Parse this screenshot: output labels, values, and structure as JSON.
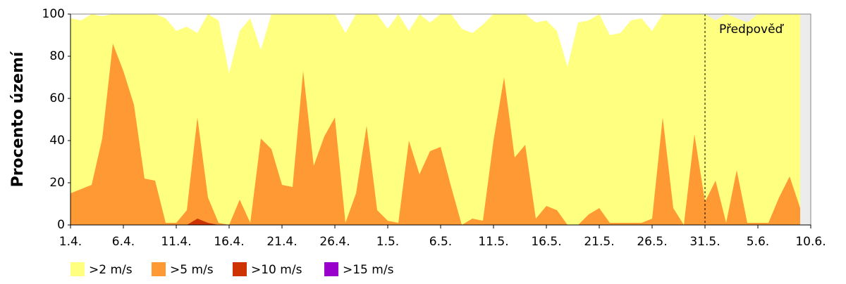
{
  "chart_data": {
    "type": "area",
    "y_label": "Procento území",
    "categories": [
      "1.4.",
      null,
      null,
      null,
      null,
      "6.4.",
      null,
      null,
      null,
      null,
      "11.4.",
      null,
      null,
      null,
      null,
      "16.4.",
      null,
      null,
      null,
      null,
      "21.4.",
      null,
      null,
      null,
      null,
      "26.4.",
      null,
      null,
      null,
      null,
      "1.5.",
      null,
      null,
      null,
      null,
      "6.5.",
      null,
      null,
      null,
      null,
      "11.5.",
      null,
      null,
      null,
      null,
      "16.5.",
      null,
      null,
      null,
      null,
      "21.5.",
      null,
      null,
      null,
      null,
      "26.5.",
      null,
      null,
      null,
      null,
      "31.5.",
      null,
      null,
      null,
      null,
      "5.6.",
      null,
      null,
      null,
      null,
      "10.6."
    ],
    "series": [
      {
        "name": ">2 m/s",
        "color": "#ffff80",
        "values": [
          98,
          97,
          100,
          99,
          100,
          100,
          100,
          100,
          100,
          98,
          92,
          94,
          91,
          100,
          97,
          72,
          92,
          98,
          83,
          100,
          100,
          100,
          100,
          100,
          100,
          100,
          91,
          100,
          100,
          100,
          93,
          100,
          92,
          100,
          96,
          100,
          100,
          93,
          91,
          95,
          100,
          100,
          100,
          100,
          96,
          97,
          92,
          75,
          96,
          97,
          100,
          90,
          91,
          97,
          98,
          92,
          100,
          100,
          100,
          100,
          100,
          97,
          100,
          98,
          96,
          100,
          100,
          100,
          100,
          100,
          null
        ]
      },
      {
        "name": ">5 m/s",
        "color": "#ff9933",
        "values": [
          15,
          17,
          19,
          41,
          86,
          73,
          57,
          22,
          21,
          1,
          1,
          7,
          51,
          13,
          1,
          0,
          12,
          1,
          41,
          36,
          19,
          18,
          73,
          28,
          42,
          51,
          1,
          15,
          47,
          7,
          2,
          1,
          40,
          24,
          35,
          37,
          18,
          0,
          3,
          2,
          40,
          70,
          32,
          38,
          3,
          9,
          7,
          0,
          0,
          5,
          8,
          1,
          1,
          1,
          1,
          3,
          51,
          8,
          0,
          43,
          11,
          21,
          1,
          26,
          1,
          1,
          1,
          13,
          23,
          8,
          null
        ]
      },
      {
        "name": ">10 m/s",
        "color": "#cc3300",
        "values": [
          0,
          0,
          0,
          0,
          0,
          0,
          0,
          0,
          0,
          0,
          0,
          0,
          3,
          1,
          0,
          0,
          0,
          0,
          0,
          0,
          0,
          0,
          0,
          0,
          0,
          0,
          0,
          0,
          0,
          0,
          0,
          0,
          0,
          0,
          0,
          0,
          0,
          0,
          0,
          0,
          0,
          0,
          0,
          0,
          0,
          0,
          0,
          0,
          0,
          0,
          0,
          0,
          0,
          0,
          0,
          0,
          0,
          0,
          0,
          0,
          0,
          0,
          0,
          0,
          0,
          0,
          0,
          0,
          0,
          0,
          null
        ]
      },
      {
        "name": ">15 m/s",
        "color": "#9900cc",
        "values": [
          0,
          0,
          0,
          0,
          0,
          0,
          0,
          0,
          0,
          0,
          0,
          0,
          0,
          0,
          0,
          0,
          0,
          0,
          0,
          0,
          0,
          0,
          0,
          0,
          0,
          0,
          0,
          0,
          0,
          0,
          0,
          0,
          0,
          0,
          0,
          0,
          0,
          0,
          0,
          0,
          0,
          0,
          0,
          0,
          0,
          0,
          0,
          0,
          0,
          0,
          0,
          0,
          0,
          0,
          0,
          0,
          0,
          0,
          0,
          0,
          0,
          0,
          0,
          0,
          0,
          0,
          0,
          0,
          0,
          0,
          null
        ]
      }
    ],
    "forecast": {
      "label": "Předpověď",
      "start": "31.5."
    },
    "ylim": [
      0,
      100
    ],
    "yticks": [
      0,
      20,
      40,
      60,
      80,
      100
    ]
  }
}
